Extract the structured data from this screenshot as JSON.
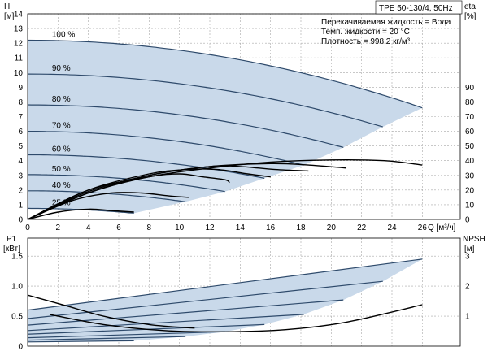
{
  "chart_data": [
    {
      "type": "line",
      "id": "qh",
      "title": "TPE 50-130/4, 50Hz",
      "info_lines": [
        "Перекачиваемая жидкость = Вода",
        "Темп. жидкости = 20 °C",
        "Плотность = 998.2 кг/м³"
      ],
      "ylabel_left": "H",
      "ylabel_left_unit": "[м]",
      "ylabel_right": "eta",
      "ylabel_right_unit": "[%]",
      "xlabel": "Q [м³/ч]",
      "x_ticks": [
        0,
        2,
        4,
        6,
        8,
        10,
        12,
        14,
        16,
        18,
        20,
        22,
        24,
        26
      ],
      "y_left_ticks": [
        0,
        1,
        2,
        3,
        4,
        5,
        6,
        7,
        8,
        9,
        10,
        11,
        12,
        13,
        14
      ],
      "y_right_ticks": [
        0,
        10,
        20,
        30,
        40,
        50,
        60,
        70,
        80,
        90
      ],
      "xlim": [
        0,
        28.5
      ],
      "ylim_left": [
        0,
        14
      ],
      "ylim_right": [
        0,
        140
      ],
      "grid": true,
      "colors": {
        "area": "#c9d9ea",
        "curve": "#2e4a6b",
        "eta": "#000000"
      },
      "speed_curves": [
        {
          "name": "100 %",
          "h0": 12.2,
          "qmax": 26.0,
          "hend": 7.6
        },
        {
          "name": "90 %",
          "h0": 9.9,
          "qmax": 23.4,
          "hend": 6.3
        },
        {
          "name": "80 %",
          "h0": 7.8,
          "qmax": 20.8,
          "hend": 4.9
        },
        {
          "name": "70 %",
          "h0": 6.0,
          "qmax": 18.2,
          "hend": 3.7
        },
        {
          "name": "60 %",
          "h0": 4.4,
          "qmax": 15.6,
          "hend": 2.8
        },
        {
          "name": "50 %",
          "h0": 3.05,
          "qmax": 13.0,
          "hend": 1.9
        },
        {
          "name": "40 %",
          "h0": 1.95,
          "qmax": 10.4,
          "hend": 1.2
        },
        {
          "name": "25 %",
          "h0": 0.75,
          "qmax": 7.0,
          "hend": 0.42
        }
      ],
      "eta_curves": [
        {
          "x": [
            0,
            4,
            8,
            12,
            16,
            20,
            23.5,
            26
          ],
          "y": [
            0,
            18,
            29,
            35,
            39,
            40.5,
            40,
            37
          ]
        },
        {
          "x": [
            0,
            4,
            8,
            12,
            16,
            18.5,
            21
          ],
          "y": [
            0,
            18,
            30,
            36,
            38,
            37,
            35
          ]
        },
        {
          "x": [
            0,
            4,
            8,
            12,
            14,
            16.3,
            18.5
          ],
          "y": [
            0,
            19,
            30,
            36,
            36,
            34,
            33
          ]
        },
        {
          "x": [
            0,
            4,
            8,
            10.5,
            12.5,
            14.5,
            16
          ],
          "y": [
            0,
            20,
            31,
            34,
            34,
            31,
            29
          ]
        },
        {
          "x": [
            0,
            4,
            8,
            10,
            11.5,
            13,
            13.3
          ],
          "y": [
            0,
            20,
            29,
            31,
            29,
            27,
            25
          ]
        },
        {
          "x": [
            0,
            3,
            5.5,
            7.5,
            9.3,
            10.6
          ],
          "y": [
            0,
            13,
            18,
            18,
            16,
            15
          ]
        },
        {
          "x": [
            0,
            2,
            4,
            5.5,
            7
          ],
          "y": [
            0,
            5,
            7,
            6,
            5
          ]
        }
      ]
    },
    {
      "type": "line",
      "id": "power",
      "ylabel_left": "P1",
      "ylabel_left_unit": "[кВт]",
      "ylabel_right": "NPSH",
      "ylabel_right_unit": "[м]",
      "y_left_ticks": [
        0,
        0.5,
        1.0,
        1.5
      ],
      "y_left_tick_labels": [
        "0",
        "0.5",
        "1.0",
        "1.5"
      ],
      "y_right_ticks": [
        1,
        2,
        3
      ],
      "ylim_left": [
        0,
        1.8
      ],
      "ylim_right": [
        0,
        3.6
      ],
      "xlim": [
        0,
        28.5
      ],
      "grid": true,
      "colors": {
        "area": "#c9d9ea",
        "curve": "#2e4a6b",
        "npsh": "#000000"
      },
      "power_curves": [
        {
          "name": "100 %",
          "x": [
            0,
            26
          ],
          "y": [
            0.6,
            1.45
          ]
        },
        {
          "name": "90 %",
          "x": [
            0,
            23.4
          ],
          "y": [
            0.46,
            1.08
          ]
        },
        {
          "name": "80 %",
          "x": [
            0,
            20.8
          ],
          "y": [
            0.35,
            0.77
          ]
        },
        {
          "name": "70 %",
          "x": [
            0,
            18.2
          ],
          "y": [
            0.26,
            0.53
          ]
        },
        {
          "name": "60 %",
          "x": [
            0,
            15.6
          ],
          "y": [
            0.2,
            0.36
          ]
        },
        {
          "name": "50 %",
          "x": [
            0,
            13.0
          ],
          "y": [
            0.14,
            0.24
          ]
        },
        {
          "name": "40 %",
          "x": [
            0,
            10.4
          ],
          "y": [
            0.1,
            0.16
          ]
        },
        {
          "name": "25 %",
          "x": [
            0,
            7.0
          ],
          "y": [
            0.07,
            0.09
          ]
        }
      ],
      "npsh_curves": [
        {
          "x": [
            0,
            2.5,
            5,
            8,
            11
          ],
          "y": [
            1.7,
            1.35,
            1.0,
            0.72,
            0.6
          ]
        },
        {
          "x": [
            1.5,
            5,
            9,
            13,
            17,
            21,
            26
          ],
          "y": [
            1.05,
            0.72,
            0.52,
            0.48,
            0.55,
            0.8,
            1.38
          ]
        }
      ]
    }
  ]
}
